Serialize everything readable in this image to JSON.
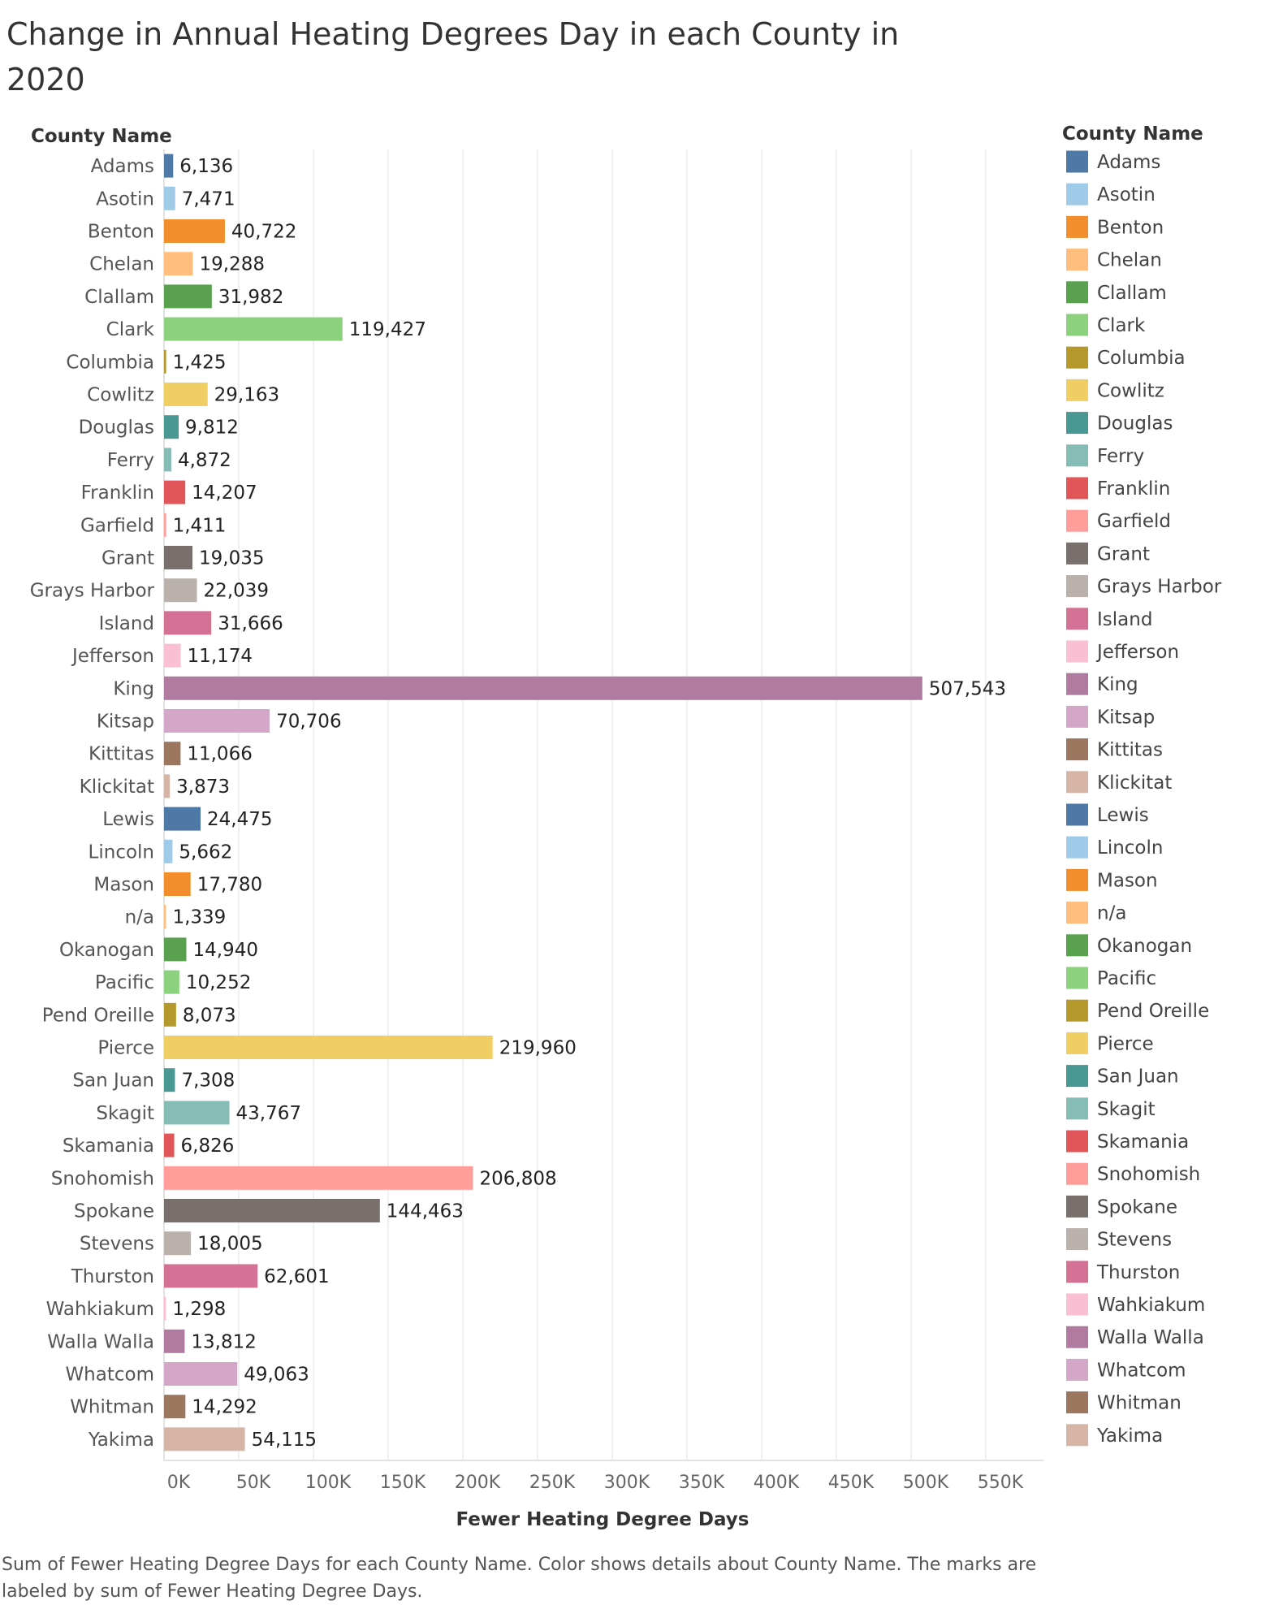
{
  "title": "Change in Annual Heating Degrees Day in each County in 2020",
  "caption": "Sum of Fewer Heating Degree Days for each County Name.  Color shows details about County Name.  The marks are labeled by sum of Fewer Heating Degree Days.",
  "chart_data": {
    "type": "bar",
    "orientation": "horizontal",
    "row_header": "County Name",
    "xlabel": "Fewer Heating Degree Days",
    "xlim": [
      0,
      590000
    ],
    "x_ticks": [
      0,
      50000,
      100000,
      150000,
      200000,
      250000,
      300000,
      350000,
      400000,
      450000,
      500000,
      550000
    ],
    "x_tick_labels": [
      "0K",
      "50K",
      "100K",
      "150K",
      "200K",
      "250K",
      "300K",
      "350K",
      "400K",
      "450K",
      "500K",
      "550K"
    ],
    "grid": true,
    "legend": {
      "title": "County Name",
      "placement": "right"
    },
    "categories": [
      "Adams",
      "Asotin",
      "Benton",
      "Chelan",
      "Clallam",
      "Clark",
      "Columbia",
      "Cowlitz",
      "Douglas",
      "Ferry",
      "Franklin",
      "Garfield",
      "Grant",
      "Grays Harbor",
      "Island",
      "Jefferson",
      "King",
      "Kitsap",
      "Kittitas",
      "Klickitat",
      "Lewis",
      "Lincoln",
      "Mason",
      "n/a",
      "Okanogan",
      "Pacific",
      "Pend Oreille",
      "Pierce",
      "San Juan",
      "Skagit",
      "Skamania",
      "Snohomish",
      "Spokane",
      "Stevens",
      "Thurston",
      "Wahkiakum",
      "Walla Walla",
      "Whatcom",
      "Whitman",
      "Yakima"
    ],
    "values": [
      6136,
      7471,
      40722,
      19288,
      31982,
      119427,
      1425,
      29163,
      9812,
      4872,
      14207,
      1411,
      19035,
      22039,
      31666,
      11174,
      507543,
      70706,
      11066,
      3873,
      24475,
      5662,
      17780,
      1339,
      14940,
      10252,
      8073,
      219960,
      7308,
      43767,
      6826,
      206808,
      144463,
      18005,
      62601,
      1298,
      13812,
      49063,
      14292,
      54115
    ],
    "value_labels": [
      "6,136",
      "7,471",
      "40,722",
      "19,288",
      "31,982",
      "119,427",
      "1,425",
      "29,163",
      "9,812",
      "4,872",
      "14,207",
      "1,411",
      "19,035",
      "22,039",
      "31,666",
      "11,174",
      "507,543",
      "70,706",
      "11,066",
      "3,873",
      "24,475",
      "5,662",
      "17,780",
      "1,339",
      "14,940",
      "10,252",
      "8,073",
      "219,960",
      "7,308",
      "43,767",
      "6,826",
      "206,808",
      "144,463",
      "18,005",
      "62,601",
      "1,298",
      "13,812",
      "49,063",
      "14,292",
      "54,115"
    ],
    "colors": [
      "#4e79a7",
      "#a0cbe8",
      "#f28e2b",
      "#ffbe7d",
      "#59a14f",
      "#8cd17d",
      "#b6992d",
      "#f1ce63",
      "#499894",
      "#86bcb6",
      "#e15759",
      "#ff9d9a",
      "#79706e",
      "#bab0ac",
      "#d37295",
      "#fabfd2",
      "#b07aa1",
      "#d4a6c8",
      "#9d7660",
      "#d7b5a6",
      "#4e79a7",
      "#a0cbe8",
      "#f28e2b",
      "#ffbe7d",
      "#59a14f",
      "#8cd17d",
      "#b6992d",
      "#f1ce63",
      "#499894",
      "#86bcb6",
      "#e15759",
      "#ff9d9a",
      "#79706e",
      "#bab0ac",
      "#d37295",
      "#fabfd2",
      "#b07aa1",
      "#d4a6c8",
      "#9d7660",
      "#d7b5a6"
    ]
  }
}
